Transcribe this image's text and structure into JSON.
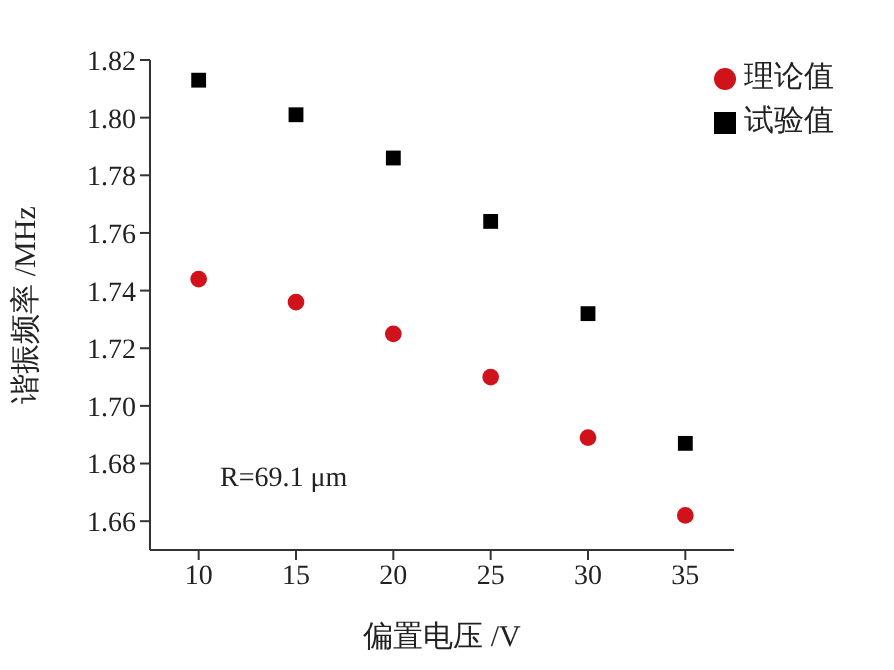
{
  "chart_data": {
    "type": "scatter",
    "xlabel": "偏置电压 /V",
    "ylabel": "谐振频率 /MHz",
    "x": [
      10,
      15,
      20,
      25,
      30,
      35
    ],
    "series": [
      {
        "name": "试验值",
        "color": "#000000",
        "marker": "square",
        "values": [
          1.813,
          1.801,
          1.786,
          1.764,
          1.732,
          1.687
        ]
      },
      {
        "name": "理论值",
        "color": "#d0121b",
        "marker": "circle",
        "values": [
          1.744,
          1.736,
          1.725,
          1.71,
          1.689,
          1.662
        ]
      }
    ],
    "xlim": [
      7.5,
      37.5
    ],
    "xticks": [
      10,
      15,
      20,
      25,
      30,
      35
    ],
    "ylim": [
      1.65,
      1.82
    ],
    "yticks": [
      1.66,
      1.68,
      {
        "value": 1.7,
        "label": "1.70"
      },
      1.72,
      1.74,
      1.76,
      1.78,
      {
        "value": 1.8,
        "label": "1.80"
      },
      1.82
    ],
    "grid": false,
    "legend": "top right",
    "annotations": [
      "R=69.1 μm"
    ]
  }
}
